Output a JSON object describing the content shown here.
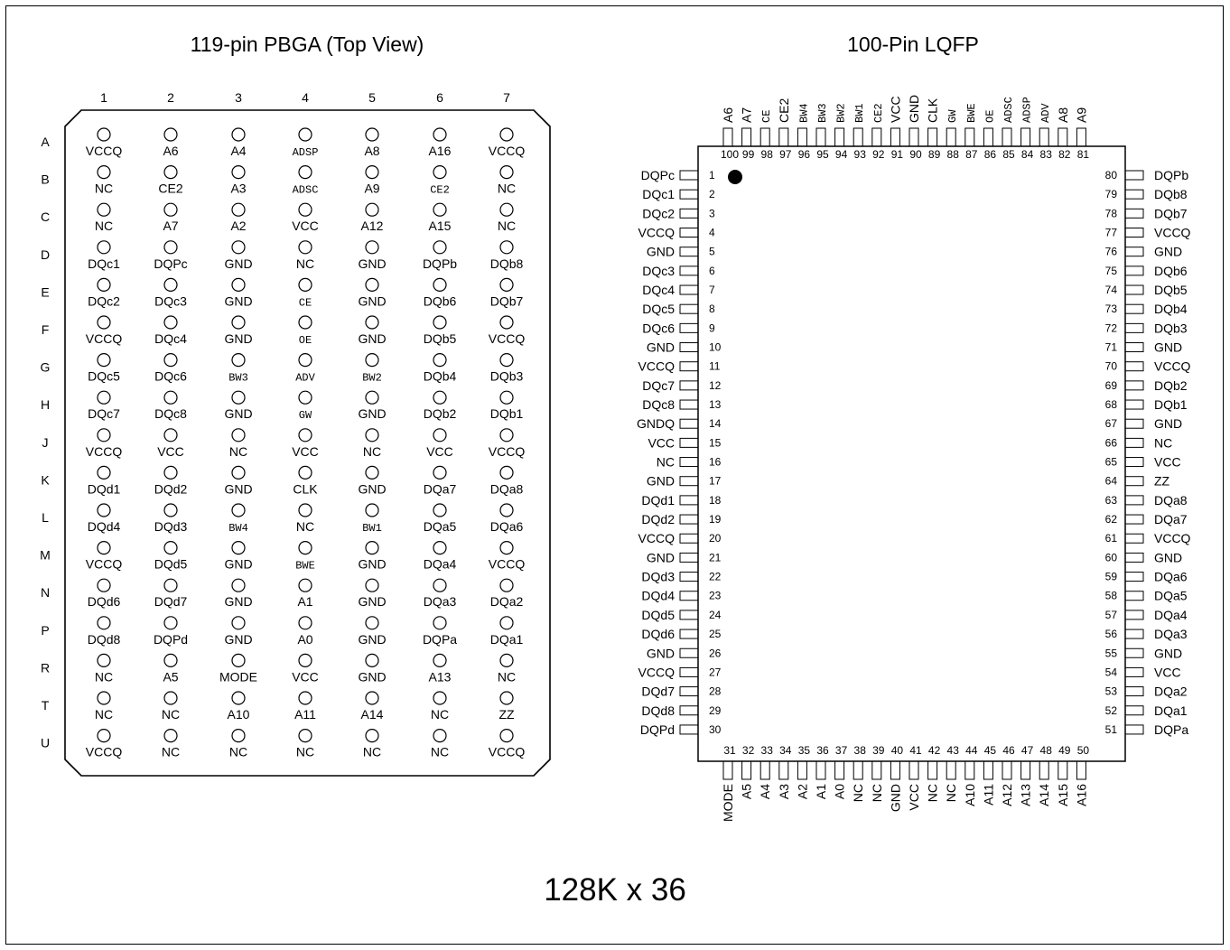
{
  "bga": {
    "title": "119-pin PBGA (Top View)",
    "columns": [
      "1",
      "2",
      "3",
      "4",
      "5",
      "6",
      "7"
    ],
    "rows": [
      {
        "row": "A",
        "pins": [
          "VCCQ",
          "A6",
          "A4",
          "ADSP",
          "A8",
          "A16",
          "VCCQ"
        ]
      },
      {
        "row": "B",
        "pins": [
          "NC",
          "CE2",
          "A3",
          "ADSC",
          "A9",
          "CE2",
          "NC"
        ]
      },
      {
        "row": "C",
        "pins": [
          "NC",
          "A7",
          "A2",
          "VCC",
          "A12",
          "A15",
          "NC"
        ]
      },
      {
        "row": "D",
        "pins": [
          "DQc1",
          "DQPc",
          "GND",
          "NC",
          "GND",
          "DQPb",
          "DQb8"
        ]
      },
      {
        "row": "E",
        "pins": [
          "DQc2",
          "DQc3",
          "GND",
          "CE",
          "GND",
          "DQb6",
          "DQb7"
        ]
      },
      {
        "row": "F",
        "pins": [
          "VCCQ",
          "DQc4",
          "GND",
          "OE",
          "GND",
          "DQb5",
          "VCCQ"
        ]
      },
      {
        "row": "G",
        "pins": [
          "DQc5",
          "DQc6",
          "BW3",
          "ADV",
          "BW2",
          "DQb4",
          "DQb3"
        ]
      },
      {
        "row": "H",
        "pins": [
          "DQc7",
          "DQc8",
          "GND",
          "GW",
          "GND",
          "DQb2",
          "DQb1"
        ]
      },
      {
        "row": "J",
        "pins": [
          "VCCQ",
          "VCC",
          "NC",
          "VCC",
          "NC",
          "VCC",
          "VCCQ"
        ]
      },
      {
        "row": "K",
        "pins": [
          "DQd1",
          "DQd2",
          "GND",
          "CLK",
          "GND",
          "DQa7",
          "DQa8"
        ]
      },
      {
        "row": "L",
        "pins": [
          "DQd4",
          "DQd3",
          "BW4",
          "NC",
          "BW1",
          "DQa5",
          "DQa6"
        ]
      },
      {
        "row": "M",
        "pins": [
          "VCCQ",
          "DQd5",
          "GND",
          "BWE",
          "GND",
          "DQa4",
          "VCCQ"
        ]
      },
      {
        "row": "N",
        "pins": [
          "DQd6",
          "DQd7",
          "GND",
          "A1",
          "GND",
          "DQa3",
          "DQa2"
        ]
      },
      {
        "row": "P",
        "pins": [
          "DQd8",
          "DQPd",
          "GND",
          "A0",
          "GND",
          "DQPa",
          "DQa1"
        ]
      },
      {
        "row": "R",
        "pins": [
          "NC",
          "A5",
          "MODE",
          "VCC",
          "GND",
          "A13",
          "NC"
        ]
      },
      {
        "row": "T",
        "pins": [
          "NC",
          "NC",
          "A10",
          "A11",
          "A14",
          "NC",
          "ZZ"
        ]
      },
      {
        "row": "U",
        "pins": [
          "VCCQ",
          "NC",
          "NC",
          "NC",
          "NC",
          "NC",
          "VCCQ"
        ]
      }
    ],
    "overbar_pins": [
      "ADSP",
      "ADSC",
      "CE",
      "OE",
      "BW3",
      "ADV",
      "BW2",
      "GW",
      "BW4",
      "BW1",
      "BWE",
      "CE2@B6"
    ]
  },
  "lqfp": {
    "title": "100-Pin LQFP",
    "left_pins": [
      "DQPc",
      "DQc1",
      "DQc2",
      "VCCQ",
      "GND",
      "DQc3",
      "DQc4",
      "DQc5",
      "DQc6",
      "GND",
      "VCCQ",
      "DQc7",
      "DQc8",
      "GNDQ",
      "VCC",
      "NC",
      "GND",
      "DQd1",
      "DQd2",
      "VCCQ",
      "GND",
      "DQd3",
      "DQd4",
      "DQd5",
      "DQd6",
      "GND",
      "VCCQ",
      "DQd7",
      "DQd8",
      "DQPd"
    ],
    "bottom_pins": [
      "MODE",
      "A5",
      "A4",
      "A3",
      "A2",
      "A1",
      "A0",
      "NC",
      "NC",
      "GND",
      "VCC",
      "NC",
      "NC",
      "A10",
      "A11",
      "A12",
      "A13",
      "A14",
      "A15",
      "A16"
    ],
    "right_pins": [
      "DQPa",
      "DQa1",
      "DQa2",
      "VCC",
      "GND",
      "DQa3",
      "DQa4",
      "DQa5",
      "DQa6",
      "GND",
      "VCCQ",
      "DQa7",
      "DQa8",
      "ZZ",
      "VCC",
      "NC",
      "GND",
      "DQb1",
      "DQb2",
      "VCCQ",
      "GND",
      "DQb3",
      "DQb4",
      "DQb5",
      "DQb6",
      "GND",
      "VCCQ",
      "DQb7",
      "DQb8",
      "DQPb"
    ],
    "top_pins": [
      "A9",
      "A8",
      "ADV",
      "ADSP",
      "ADSC",
      "OE",
      "BWE",
      "GW",
      "CLK",
      "GND",
      "VCC",
      "CE2",
      "BW1",
      "BW2",
      "BW3",
      "BW4",
      "CE2",
      "CE",
      "A7",
      "A6"
    ],
    "overbar_top_pins": [
      "ADV",
      "ADSP",
      "ADSC",
      "OE",
      "BWE",
      "GW",
      "CE2@92",
      "BW1",
      "BW2",
      "BW3",
      "BW4",
      "CE"
    ]
  },
  "caption": "128K x 36"
}
